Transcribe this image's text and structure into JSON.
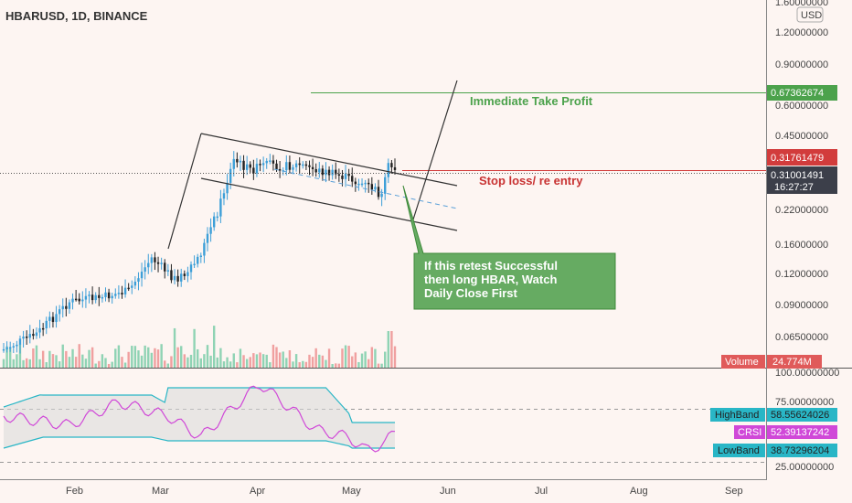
{
  "header": {
    "symbol_title": "HBARUSD, 1D, BINANCE"
  },
  "price_axis": {
    "currency": "USD",
    "ticks": [
      "1.60000000",
      "1.20000000",
      "0.90000000",
      "0.60000000",
      "0.45000000",
      "0.22000000",
      "0.16000000",
      "0.12000000",
      "0.09000000",
      "0.06500000"
    ]
  },
  "price_tags": {
    "take_profit": "0.67362674",
    "stop_loss": "0.31761479",
    "last_price": "0.31001491",
    "countdown": "16:27:27"
  },
  "volume": {
    "label": "Volume",
    "value": "24.774M"
  },
  "annotations": {
    "take_profit": "Immediate Take Profit",
    "stop_loss": "Stop loss/ re entry",
    "callout_lines": [
      "If this retest Successful",
      "then long HBAR, Watch",
      "Daily Close First"
    ]
  },
  "oscillator": {
    "ticks": [
      "100.00000000",
      "75.00000000",
      "25.00000000"
    ],
    "high_band": {
      "label": "HighBand",
      "value": "58.55624026"
    },
    "crsi": {
      "label": "CRSI",
      "value": "52.39137242"
    },
    "low_band": {
      "label": "LowBand",
      "value": "38.73296204"
    }
  },
  "time_axis": {
    "labels": [
      "Feb",
      "Mar",
      "Apr",
      "May",
      "Jun",
      "Jul",
      "Aug",
      "Sep"
    ]
  },
  "colors": {
    "background": "#fdf5f2",
    "up": "#3d9fd8",
    "down": "#222222",
    "take_profit": "#4ca24c",
    "stop_loss": "#d23c3c",
    "last_price_tag": "#3c3f4a",
    "high_band": "#29b6c6",
    "crsi": "#d048d8",
    "callout": "#66ab62"
  }
}
